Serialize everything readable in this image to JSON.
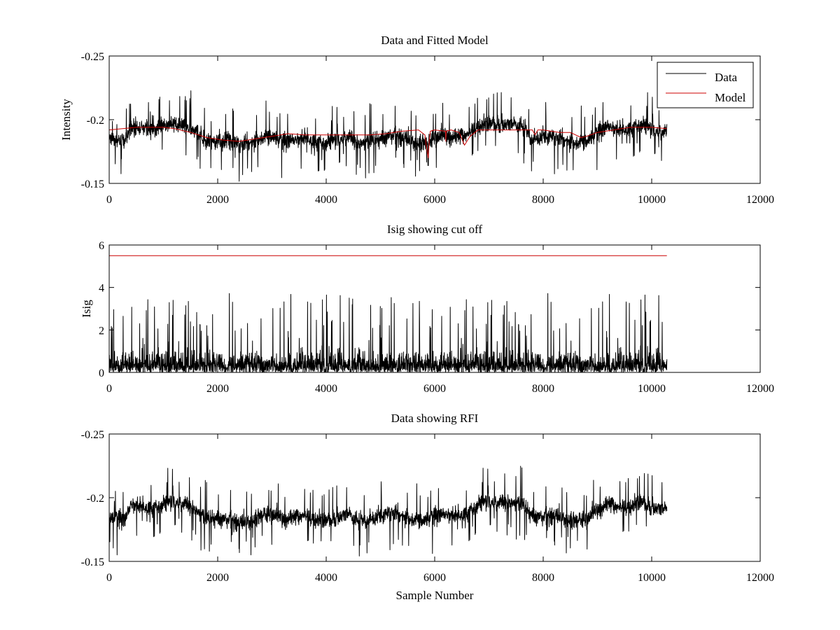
{
  "chart_data": [
    {
      "type": "line",
      "title": "Data and Fitted Model",
      "xlabel": "",
      "ylabel": "Intensity",
      "xlim": [
        0,
        12000
      ],
      "ylim": [
        -0.25,
        -0.15
      ],
      "y_reversed": true,
      "xticks": [
        0,
        2000,
        4000,
        6000,
        8000,
        10000,
        12000
      ],
      "yticks": [
        -0.15,
        -0.2,
        -0.25
      ],
      "legend": {
        "position": "top-right",
        "entries": [
          "Data",
          "Model"
        ]
      },
      "series": [
        {
          "name": "Data",
          "color": "#000000",
          "style": "dense-noise",
          "x": [
            0,
            300,
            400,
            600,
            800,
            1000,
            1200,
            1400,
            1600,
            1800,
            2000,
            2200,
            2400,
            2600,
            2800,
            3000,
            3200,
            3400,
            3600,
            3800,
            4000,
            4200,
            4400,
            4600,
            4800,
            5000,
            5200,
            5400,
            5600,
            5800,
            5900,
            6000,
            6200,
            6400,
            6600,
            6800,
            7000,
            7200,
            7400,
            7600,
            7800,
            8000,
            8200,
            8400,
            8600,
            8800,
            9000,
            9200,
            9400,
            9600,
            9800,
            10000,
            10280
          ],
          "center": [
            -0.185,
            -0.183,
            -0.195,
            -0.193,
            -0.192,
            -0.195,
            -0.197,
            -0.195,
            -0.19,
            -0.183,
            -0.183,
            -0.183,
            -0.18,
            -0.182,
            -0.186,
            -0.187,
            -0.183,
            -0.184,
            -0.186,
            -0.183,
            -0.182,
            -0.184,
            -0.187,
            -0.181,
            -0.183,
            -0.184,
            -0.188,
            -0.186,
            -0.183,
            -0.182,
            -0.183,
            -0.186,
            -0.187,
            -0.186,
            -0.188,
            -0.195,
            -0.197,
            -0.196,
            -0.196,
            -0.195,
            -0.185,
            -0.185,
            -0.186,
            -0.184,
            -0.182,
            -0.183,
            -0.19,
            -0.195,
            -0.192,
            -0.193,
            -0.197,
            -0.192,
            -0.19
          ],
          "amplitude": 0.011,
          "spikes": [
            [
              5880,
              -0.164
            ]
          ]
        },
        {
          "name": "Model",
          "color": "#cc0000",
          "x": [
            0,
            500,
            1000,
            1200,
            1500,
            1800,
            2100,
            2400,
            2700,
            3000,
            3300,
            3600,
            3900,
            4200,
            4500,
            4800,
            5100,
            5400,
            5700,
            5820,
            5850,
            5880,
            5900,
            5920,
            6000,
            6200,
            6205,
            6210,
            6300,
            6450,
            6550,
            6650,
            6800,
            7000,
            7500,
            7800,
            7850,
            7900,
            8000,
            8300,
            8500,
            8700,
            8800,
            9000,
            9300,
            9600,
            10000,
            10280
          ],
          "y": [
            -0.192,
            -0.194,
            -0.194,
            -0.193,
            -0.19,
            -0.186,
            -0.184,
            -0.183,
            -0.185,
            -0.187,
            -0.189,
            -0.188,
            -0.188,
            -0.188,
            -0.188,
            -0.188,
            -0.189,
            -0.191,
            -0.192,
            -0.188,
            -0.178,
            -0.17,
            -0.184,
            -0.191,
            -0.192,
            -0.191,
            -0.183,
            -0.191,
            -0.192,
            -0.19,
            -0.18,
            -0.187,
            -0.192,
            -0.192,
            -0.192,
            -0.192,
            -0.188,
            -0.192,
            -0.192,
            -0.19,
            -0.19,
            -0.186,
            -0.187,
            -0.19,
            -0.192,
            -0.194,
            -0.194,
            -0.193
          ]
        }
      ]
    },
    {
      "type": "line",
      "title": "Isig showing cut off",
      "xlabel": "",
      "ylabel": "Isig",
      "xlim": [
        0,
        12000
      ],
      "ylim": [
        0,
        6
      ],
      "xticks": [
        0,
        2000,
        4000,
        6000,
        8000,
        10000,
        12000
      ],
      "yticks": [
        0,
        2,
        4,
        6
      ],
      "series": [
        {
          "name": "Isig",
          "color": "#000000",
          "style": "dense-abs-noise",
          "x_range": [
            0,
            10280
          ],
          "typical_max": 1.5,
          "peak_max": 4.1
        },
        {
          "name": "cut off",
          "color": "#cc0000",
          "x": [
            0,
            10280
          ],
          "y": [
            5.5,
            5.5
          ]
        }
      ]
    },
    {
      "type": "line",
      "title": "Data showing RFI",
      "xlabel": "Sample Number",
      "ylabel": "",
      "xlim": [
        0,
        12000
      ],
      "ylim": [
        -0.25,
        -0.15
      ],
      "y_reversed": true,
      "xticks": [
        0,
        2000,
        4000,
        6000,
        8000,
        10000,
        12000
      ],
      "yticks": [
        -0.15,
        -0.2,
        -0.25
      ],
      "series": [
        {
          "name": "Data",
          "color": "#000000",
          "style": "dense-noise",
          "x": [
            0,
            300,
            400,
            600,
            800,
            1000,
            1200,
            1400,
            1600,
            1800,
            2000,
            2200,
            2400,
            2600,
            2800,
            3000,
            3200,
            3400,
            3600,
            3800,
            4000,
            4200,
            4400,
            4600,
            4800,
            5000,
            5200,
            5400,
            5600,
            5800,
            6000,
            6200,
            6400,
            6600,
            6800,
            7000,
            7200,
            7400,
            7600,
            7800,
            8000,
            8200,
            8400,
            8600,
            8800,
            9000,
            9200,
            9400,
            9600,
            9800,
            10000,
            10280
          ],
          "center": [
            -0.185,
            -0.183,
            -0.195,
            -0.193,
            -0.192,
            -0.195,
            -0.197,
            -0.195,
            -0.19,
            -0.183,
            -0.183,
            -0.183,
            -0.18,
            -0.182,
            -0.186,
            -0.187,
            -0.183,
            -0.184,
            -0.186,
            -0.183,
            -0.182,
            -0.184,
            -0.187,
            -0.181,
            -0.183,
            -0.184,
            -0.188,
            -0.186,
            -0.183,
            -0.182,
            -0.186,
            -0.187,
            -0.186,
            -0.188,
            -0.195,
            -0.197,
            -0.196,
            -0.196,
            -0.195,
            -0.185,
            -0.185,
            -0.186,
            -0.184,
            -0.182,
            -0.183,
            -0.19,
            -0.195,
            -0.192,
            -0.193,
            -0.197,
            -0.192,
            -0.19
          ],
          "amplitude": 0.011,
          "spikes": []
        }
      ]
    }
  ]
}
